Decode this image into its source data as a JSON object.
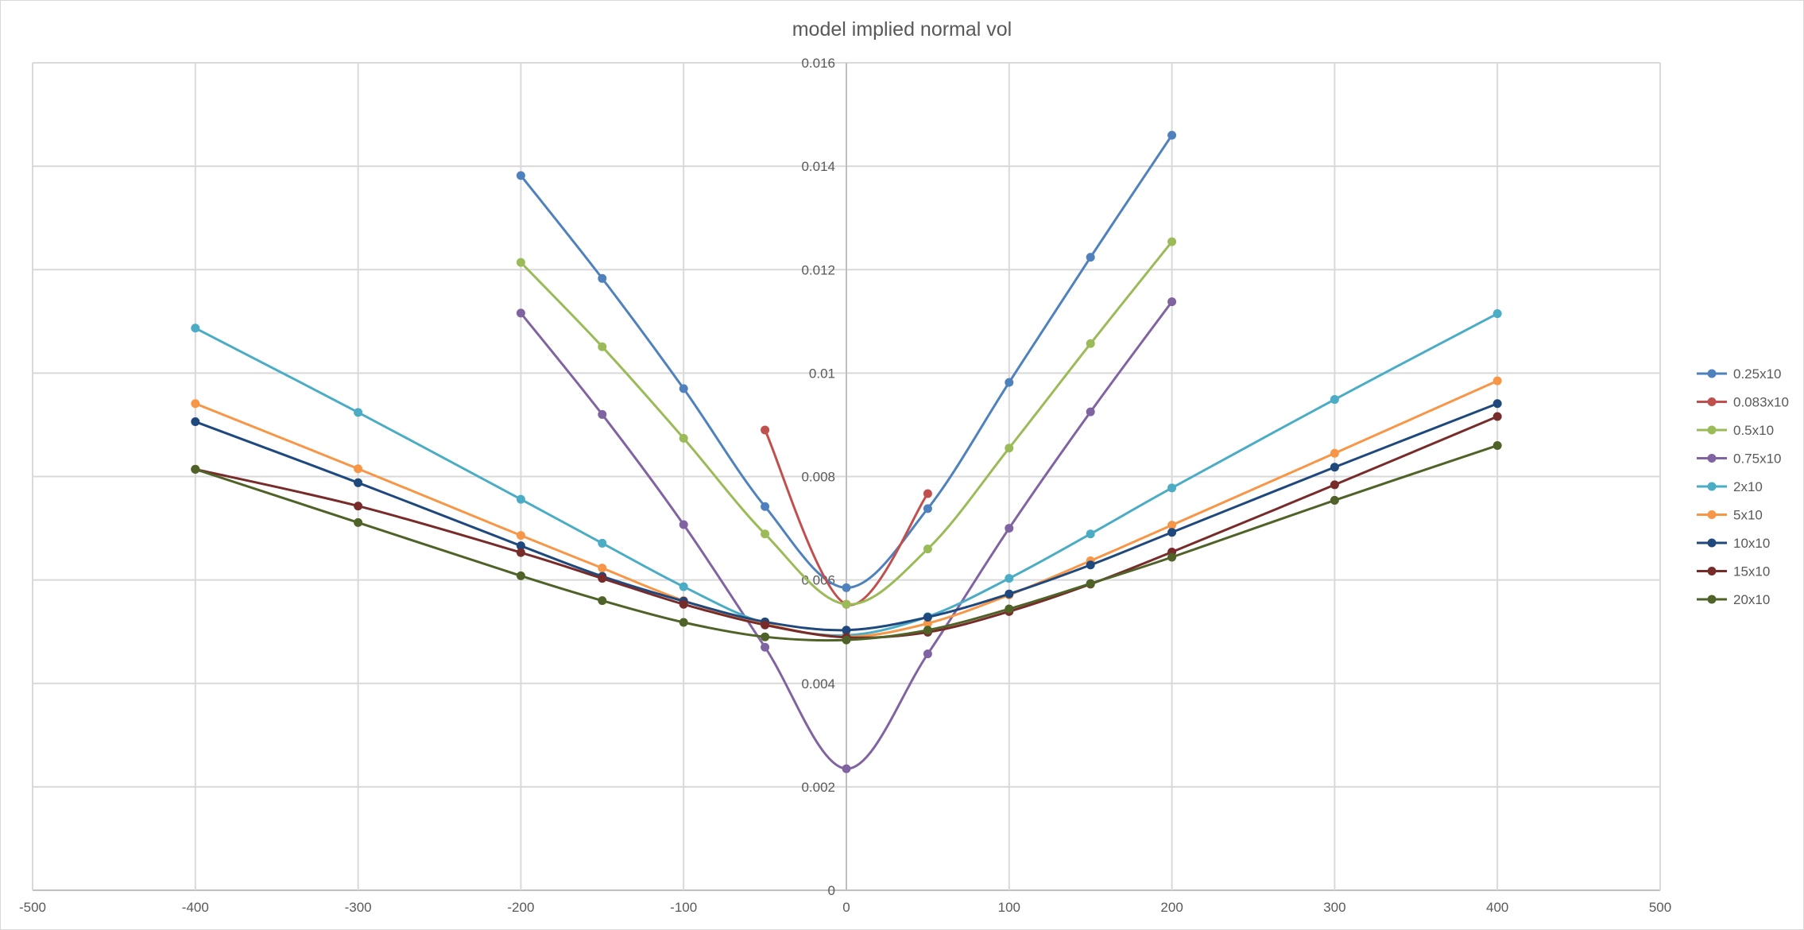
{
  "chart_data": {
    "type": "line",
    "title": "model implied normal vol",
    "xlabel": "",
    "ylabel": "",
    "xlim": [
      -500,
      500
    ],
    "ylim": [
      0,
      0.016
    ],
    "xticks": [
      -500,
      -400,
      -300,
      -200,
      -100,
      0,
      100,
      200,
      300,
      400,
      500
    ],
    "yticks": [
      0,
      0.002,
      0.004,
      0.006,
      0.008,
      0.01,
      0.012,
      0.014,
      0.016
    ],
    "ytick_labels": [
      "0",
      "0.002",
      "0.004",
      "0.006",
      "0.008",
      "0.01",
      "0.012",
      "0.014",
      "0.016"
    ],
    "grid": true,
    "smooth": true,
    "legend_position": "right",
    "series": [
      {
        "name": "0.25x10",
        "color": "#4f81bd",
        "points": [
          [
            -200,
            0.01382
          ],
          [
            -150,
            0.01183
          ],
          [
            -100,
            0.0097
          ],
          [
            -50,
            0.00742
          ],
          [
            0,
            0.00585
          ],
          [
            50,
            0.00738
          ],
          [
            100,
            0.00982
          ],
          [
            150,
            0.01224
          ],
          [
            200,
            0.0146
          ]
        ]
      },
      {
        "name": "0.083x10",
        "color": "#c0504d",
        "points": [
          [
            -50,
            0.0089
          ],
          [
            0,
            0.00553
          ],
          [
            50,
            0.00767
          ]
        ]
      },
      {
        "name": "0.5x10",
        "color": "#9bbb59",
        "points": [
          [
            -200,
            0.01214
          ],
          [
            -150,
            0.01051
          ],
          [
            -100,
            0.00874
          ],
          [
            -50,
            0.00689
          ],
          [
            0,
            0.00553
          ],
          [
            50,
            0.0066
          ],
          [
            100,
            0.00855
          ],
          [
            150,
            0.01057
          ],
          [
            200,
            0.01254
          ]
        ]
      },
      {
        "name": "0.75x10",
        "color": "#8064a2",
        "points": [
          [
            -200,
            0.01116
          ],
          [
            -150,
            0.0092
          ],
          [
            -100,
            0.00707
          ],
          [
            -50,
            0.0047
          ],
          [
            0,
            0.00235
          ],
          [
            50,
            0.00457
          ],
          [
            100,
            0.007
          ],
          [
            150,
            0.00925
          ],
          [
            200,
            0.01138
          ]
        ]
      },
      {
        "name": "2x10",
        "color": "#4bacc6",
        "points": [
          [
            -400,
            0.01087
          ],
          [
            -300,
            0.00924
          ],
          [
            -200,
            0.00756
          ],
          [
            -150,
            0.00671
          ],
          [
            -100,
            0.00587
          ],
          [
            -50,
            0.00516
          ],
          [
            0,
            0.00493
          ],
          [
            50,
            0.00529
          ],
          [
            100,
            0.00603
          ],
          [
            150,
            0.00689
          ],
          [
            200,
            0.00778
          ],
          [
            300,
            0.00949
          ],
          [
            400,
            0.01115
          ]
        ]
      },
      {
        "name": "5x10",
        "color": "#f79646",
        "points": [
          [
            -400,
            0.00941
          ],
          [
            -300,
            0.00815
          ],
          [
            -200,
            0.00686
          ],
          [
            -150,
            0.00623
          ],
          [
            -100,
            0.0056
          ],
          [
            -50,
            0.00515
          ],
          [
            0,
            0.0049
          ],
          [
            50,
            0.00516
          ],
          [
            100,
            0.00571
          ],
          [
            150,
            0.00637
          ],
          [
            200,
            0.00706
          ],
          [
            300,
            0.00845
          ],
          [
            400,
            0.00985
          ]
        ]
      },
      {
        "name": "10x10",
        "color": "#1f497d",
        "points": [
          [
            -400,
            0.00906
          ],
          [
            -300,
            0.00788
          ],
          [
            -200,
            0.00666
          ],
          [
            -150,
            0.00607
          ],
          [
            -100,
            0.00559
          ],
          [
            -50,
            0.00519
          ],
          [
            0,
            0.00503
          ],
          [
            50,
            0.00528
          ],
          [
            100,
            0.00573
          ],
          [
            150,
            0.00629
          ],
          [
            200,
            0.00692
          ],
          [
            300,
            0.00818
          ],
          [
            400,
            0.00941
          ]
        ]
      },
      {
        "name": "15x10",
        "color": "#772c2a",
        "points": [
          [
            -400,
            0.00814
          ],
          [
            -300,
            0.00743
          ],
          [
            -200,
            0.00653
          ],
          [
            -150,
            0.00603
          ],
          [
            -100,
            0.00553
          ],
          [
            -50,
            0.00513
          ],
          [
            0,
            0.00489
          ],
          [
            50,
            0.00499
          ],
          [
            100,
            0.00539
          ],
          [
            150,
            0.00592
          ],
          [
            200,
            0.00654
          ],
          [
            300,
            0.00784
          ],
          [
            400,
            0.00916
          ]
        ]
      },
      {
        "name": "20x10",
        "color": "#4f6228",
        "points": [
          [
            -400,
            0.00814
          ],
          [
            -300,
            0.00711
          ],
          [
            -200,
            0.00608
          ],
          [
            -150,
            0.0056
          ],
          [
            -100,
            0.00518
          ],
          [
            -50,
            0.0049
          ],
          [
            0,
            0.00484
          ],
          [
            50,
            0.00503
          ],
          [
            100,
            0.00544
          ],
          [
            150,
            0.00593
          ],
          [
            200,
            0.00644
          ],
          [
            300,
            0.00754
          ],
          [
            400,
            0.0086
          ]
        ]
      }
    ]
  }
}
